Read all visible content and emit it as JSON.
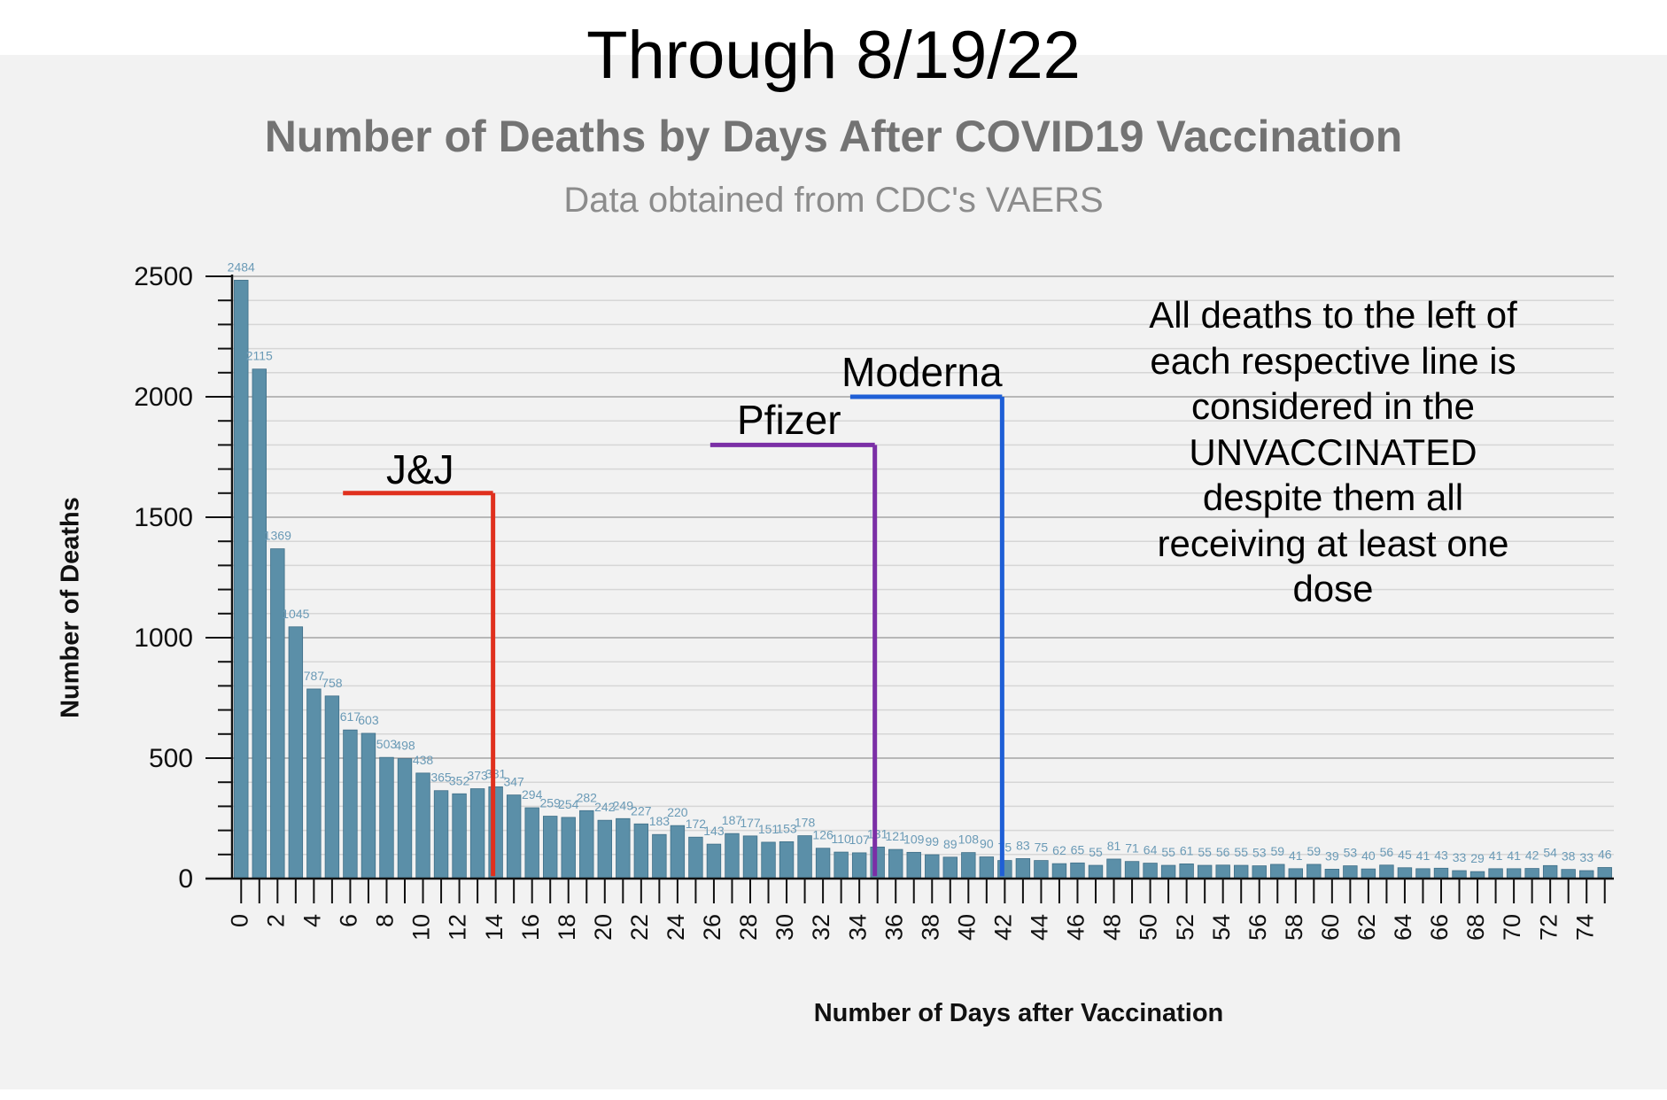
{
  "headline": "Through 8/19/22",
  "title": "Number of Deaths by Days After COVID19 Vaccination",
  "subtitle": "Data obtained from CDC's VAERS",
  "note": "All deaths to the left of each respective line is considered in the UNVACCINATED despite them all receiving at least one dose",
  "colors": {
    "bar": "#5b8fa8",
    "bar_label": "#6a9ab6",
    "jj": "#e0301e",
    "pfizer": "#7b2fa6",
    "moderna": "#1f5fd6",
    "grid": "#c8c8c8"
  },
  "vertical_markers": [
    {
      "name": "J&J",
      "day": 14,
      "deaths": 1600
    },
    {
      "name": "Pfizer",
      "day": 35,
      "deaths": 1800
    },
    {
      "name": "Moderna",
      "day": 42,
      "deaths": 2000
    }
  ],
  "chart_data": {
    "type": "bar",
    "xlabel": "Number of Days after Vaccination",
    "ylabel": "Number of Deaths",
    "ylim": [
      0,
      2500
    ],
    "yticks": [
      0,
      500,
      1000,
      1500,
      2000,
      2500
    ],
    "xticks": [
      0,
      2,
      4,
      6,
      8,
      10,
      12,
      14,
      16,
      18,
      20,
      22,
      24,
      26,
      28,
      30,
      32,
      34,
      36,
      38,
      40,
      42,
      44,
      46,
      48,
      50,
      52,
      54,
      56,
      58,
      60,
      62,
      64,
      66,
      68,
      70,
      72,
      74
    ],
    "grid": true,
    "categories": [
      0,
      1,
      2,
      3,
      4,
      5,
      6,
      7,
      8,
      9,
      10,
      11,
      12,
      13,
      14,
      15,
      16,
      17,
      18,
      19,
      20,
      21,
      22,
      23,
      24,
      25,
      26,
      27,
      28,
      29,
      30,
      31,
      32,
      33,
      34,
      35,
      36,
      37,
      38,
      39,
      40,
      41,
      42,
      43,
      44,
      45,
      46,
      47,
      48,
      49,
      50,
      51,
      52,
      53,
      54,
      55,
      56,
      57,
      58,
      59,
      60,
      61,
      62,
      63,
      64,
      65,
      66,
      67,
      68,
      69,
      70,
      71,
      72,
      73,
      74,
      75
    ],
    "values": [
      2484,
      2115,
      1369,
      1045,
      787,
      758,
      617,
      603,
      503,
      498,
      438,
      365,
      352,
      373,
      381,
      347,
      294,
      259,
      254,
      282,
      242,
      249,
      227,
      183,
      220,
      172,
      143,
      187,
      177,
      151,
      153,
      178,
      126,
      110,
      107,
      131,
      121,
      109,
      99,
      89,
      108,
      90,
      75,
      83,
      75,
      62,
      65,
      55,
      81,
      71,
      64,
      55,
      61,
      55,
      56,
      55,
      53,
      59,
      41,
      59,
      39,
      53,
      40,
      56,
      45,
      41,
      43,
      33,
      29,
      41,
      41,
      42,
      54,
      38,
      33,
      46
    ],
    "bar_labels": [
      "2484",
      "2115",
      "1369",
      "1045",
      "787",
      "758",
      "617",
      "603",
      "503",
      "498",
      "438",
      "365",
      "352",
      "373",
      "381",
      "347",
      "294",
      "259",
      "254",
      "282",
      "242",
      "249",
      "227",
      "183",
      "220",
      "172",
      "143",
      "187",
      "177",
      "151",
      "153",
      "178",
      "126",
      "110",
      "107",
      "131",
      "121",
      "109",
      "99",
      "89",
      "108",
      "90",
      "75",
      "83",
      "75",
      "62",
      "65",
      "55",
      "81",
      "71",
      "64",
      "55",
      "61",
      "55",
      "56",
      "55",
      "53",
      "59",
      "41",
      "59",
      "39",
      "53",
      "40",
      "56",
      "45",
      "41",
      "43",
      "33",
      "29",
      "41",
      "41",
      "42",
      "54",
      "38",
      "33",
      "46"
    ]
  }
}
